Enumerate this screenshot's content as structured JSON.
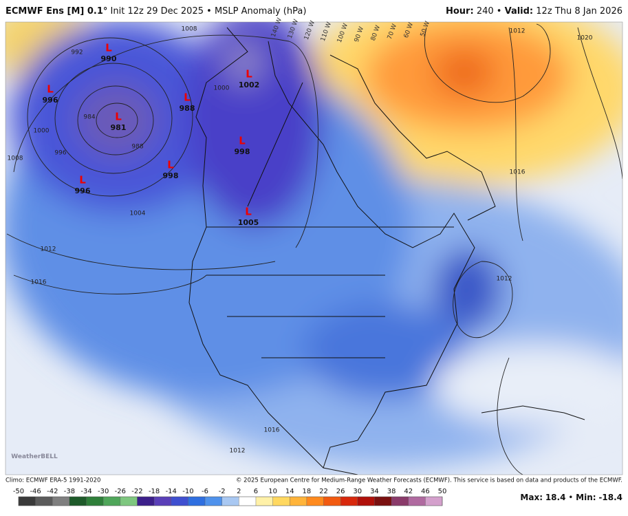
{
  "header": {
    "model": "ECMWF Ens [M] 0.1°",
    "init": "Init 12z 29 Dec 2025",
    "separator": "•",
    "field": "MSLP Anomaly (hPa)",
    "hour_label": "Hour:",
    "hour": "240",
    "valid_label": "Valid:",
    "valid": "12z Thu 8 Jan 2026"
  },
  "map": {
    "low_symbol": "L",
    "lows": [
      990,
      996,
      981,
      988,
      1002,
      998,
      998,
      996,
      1005
    ],
    "isobar_labels": [
      992,
      1008,
      984,
      996,
      1000,
      988,
      1008,
      1004,
      1012,
      1016,
      1000,
      1012,
      1020,
      1016,
      1012,
      1012,
      1016
    ],
    "longitudes": [
      "140 W",
      "130 W",
      "120 W",
      "110 W",
      "100 W",
      "90 W",
      "80 W",
      "70 W",
      "60 W",
      "50 W"
    ],
    "watermark": "WeatherBELL"
  },
  "colorbar": {
    "ticks": [
      -50,
      -46,
      -42,
      -38,
      -34,
      -30,
      -26,
      -22,
      -18,
      -14,
      -10,
      -6,
      -2,
      2,
      6,
      10,
      14,
      18,
      22,
      26,
      30,
      34,
      38,
      42,
      46,
      50
    ],
    "colors": [
      "#3a3a3a",
      "#5b5b5b",
      "#7f7f7f",
      "#1e5a2a",
      "#2f7f3a",
      "#4fa65a",
      "#7ec77f",
      "#3c1f8a",
      "#5a3fb8",
      "#3f4fd0",
      "#2f6fe0",
      "#4f92ec",
      "#a9c8f2",
      "#ffffff",
      "#fff1a8",
      "#ffd860",
      "#ffb43a",
      "#ff8a1e",
      "#f25a10",
      "#d8280c",
      "#b0100a",
      "#7a1010",
      "#8a3a6a",
      "#b06aa0",
      "#d4a0cc"
    ]
  },
  "footer": {
    "climo": "Climo: ECMWF ERA-5 1991-2020",
    "copyright": "© 2025 European Centre for Medium-Range Weather Forecasts (ECMWF). This service is based on data and products of the ECMWF.",
    "max_label": "Max:",
    "max": 18.4,
    "separator": "•",
    "min_label": "Min:",
    "min": -18.4
  }
}
